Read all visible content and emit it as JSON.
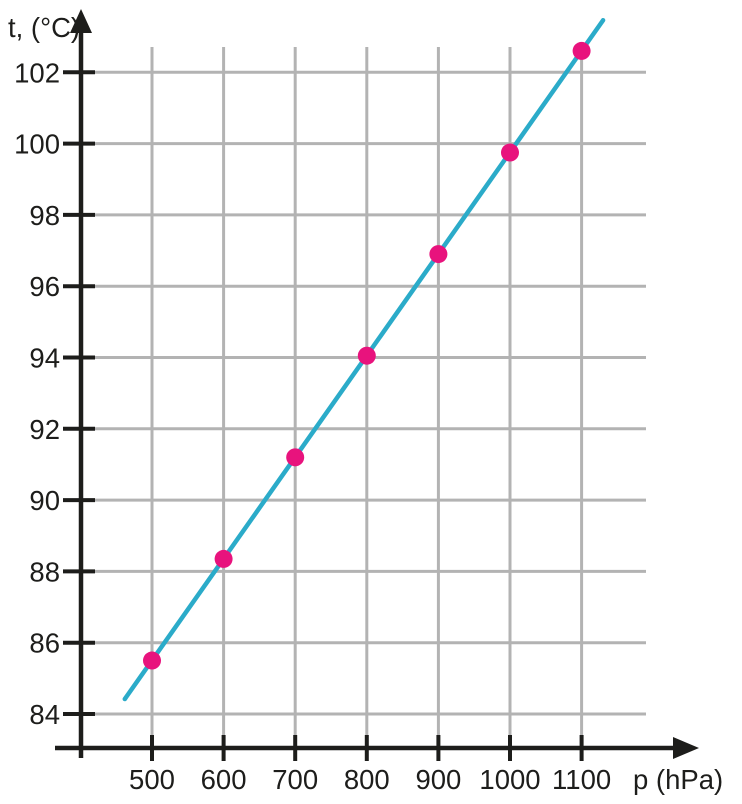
{
  "chart_data": {
    "type": "scatter",
    "title": "",
    "xlabel": "p (hPa)",
    "ylabel": "t, (°C)",
    "x": [
      500,
      600,
      700,
      800,
      900,
      1000,
      1100
    ],
    "y": [
      85.5,
      88.35,
      91.2,
      94.05,
      96.9,
      99.75,
      102.6
    ],
    "x_ticks": [
      500,
      600,
      700,
      800,
      900,
      1000,
      1100
    ],
    "y_ticks": [
      84,
      86,
      88,
      90,
      92,
      94,
      96,
      98,
      100,
      102
    ],
    "xlim": [
      400,
      1220
    ],
    "ylim": [
      83,
      104
    ],
    "grid": true,
    "legend_position": "none",
    "trendline": {
      "x1": 462,
      "y1": 84.42,
      "x2": 1130,
      "y2": 103.46
    },
    "trendline_equation": "t ≈ 71.25 + 0.0285·p",
    "colors": {
      "point": "#e8137d",
      "line": "#2babc9",
      "grid": "#b3b3b3",
      "axis": "#1d1d1b"
    }
  }
}
